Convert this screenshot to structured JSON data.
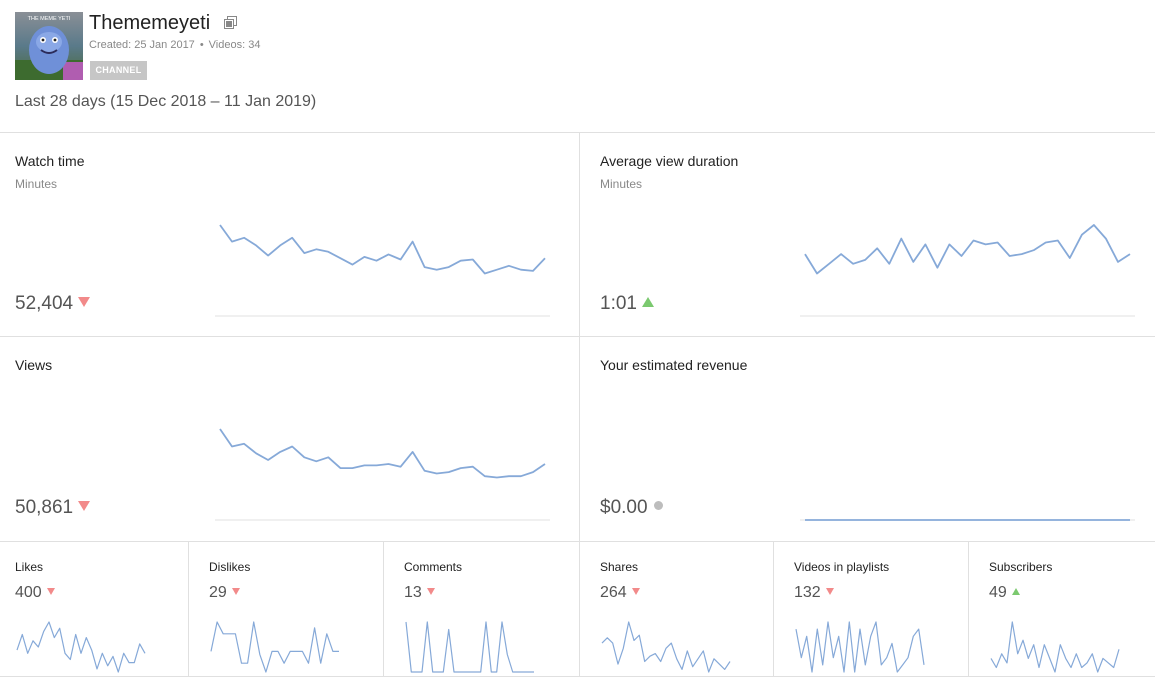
{
  "channel": {
    "title": "Thememeyeti",
    "created": "Created: 25 Jan 2017",
    "videos": "Videos: 34",
    "separator": "•",
    "badge": "CHANNEL",
    "avatar_caption": "THE MEME YETI",
    "link_icon": "external-link-icon"
  },
  "date_range": "Last 28 days (15 Dec 2018 – 11 Jan 2019)",
  "colors": {
    "line": "#86a9d8",
    "down": "#f28a8a",
    "up": "#7bc96f",
    "neutral": "#bdbdbd",
    "divider": "#e0e0e0"
  },
  "main_metrics": [
    {
      "title": "Watch time",
      "unit": "Minutes",
      "value": "52,404",
      "trend": "down",
      "series": [
        2050,
        1920,
        1950,
        1890,
        1810,
        1890,
        1950,
        1830,
        1860,
        1840,
        1790,
        1740,
        1800,
        1770,
        1820,
        1780,
        1920,
        1720,
        1700,
        1720,
        1770,
        1780,
        1670,
        1700,
        1730,
        1700,
        1690,
        1790
      ]
    },
    {
      "title": "Average view duration",
      "unit": "Minutes",
      "value": "1:01",
      "trend": "up",
      "series": [
        61,
        60,
        60.5,
        61,
        60.5,
        60.7,
        61.3,
        60.5,
        61.8,
        60.6,
        61.5,
        60.3,
        61.5,
        60.9,
        61.7,
        61.5,
        61.6,
        60.9,
        61,
        61.2,
        61.6,
        61.7,
        60.8,
        62,
        62.5,
        61.8,
        60.6,
        61
      ]
    },
    {
      "title": "Views",
      "unit": "",
      "value": "50,861",
      "trend": "down",
      "series": [
        2050,
        1920,
        1940,
        1870,
        1820,
        1880,
        1920,
        1840,
        1810,
        1840,
        1760,
        1760,
        1780,
        1780,
        1790,
        1770,
        1880,
        1740,
        1720,
        1730,
        1760,
        1770,
        1700,
        1690,
        1700,
        1700,
        1730,
        1790
      ]
    },
    {
      "title": "Your estimated revenue",
      "unit": "",
      "value": "$0.00",
      "trend": "neutral",
      "series": [
        0,
        0,
        0,
        0,
        0,
        0,
        0,
        0,
        0,
        0,
        0,
        0,
        0,
        0,
        0,
        0,
        0,
        0,
        0,
        0,
        0,
        0,
        0,
        0,
        0,
        0,
        0,
        0
      ]
    }
  ],
  "small_metrics": [
    {
      "title": "Likes",
      "value": "400",
      "trend": "down",
      "series": [
        13,
        18,
        12,
        16,
        14,
        19,
        22,
        17,
        20,
        12,
        10,
        18,
        12,
        17,
        13,
        7,
        12,
        8,
        11,
        6,
        12,
        9,
        9,
        15,
        12
      ]
    },
    {
      "title": "Dislikes",
      "value": "29",
      "trend": "down",
      "series": [
        1,
        2,
        1.6,
        1.6,
        1.6,
        0.6,
        0.6,
        2,
        0.9,
        0.3,
        1,
        1,
        0.6,
        1,
        1,
        1,
        0.6,
        1.8,
        0.6,
        1.6,
        1,
        1
      ]
    },
    {
      "title": "Comments",
      "value": "13",
      "trend": "down",
      "series": [
        2,
        0,
        0,
        0,
        2,
        0,
        0,
        0,
        1.7,
        0,
        0,
        0,
        0,
        0,
        0,
        2,
        0,
        0,
        2,
        0.7,
        0,
        0,
        0,
        0,
        0
      ]
    },
    {
      "title": "Shares",
      "value": "264",
      "trend": "down",
      "series": [
        14,
        16,
        14,
        6,
        12,
        22,
        15,
        17,
        7,
        9,
        10,
        7,
        12,
        14,
        8,
        4,
        11,
        5,
        8,
        11,
        3,
        8,
        6,
        4,
        7
      ]
    },
    {
      "title": "Videos in playlists",
      "value": "132",
      "trend": "down",
      "series": [
        7,
        3,
        6,
        1,
        7,
        2,
        8,
        3,
        6,
        1,
        8,
        1,
        7,
        2,
        6,
        8,
        2,
        3,
        5,
        1,
        2,
        3,
        6,
        7,
        2
      ]
    },
    {
      "title": "Subscribers",
      "value": "49",
      "trend": "up",
      "series": [
        3,
        1,
        4,
        2,
        11,
        4,
        7,
        3,
        6,
        1,
        6,
        3,
        0,
        6,
        3,
        1,
        4,
        1,
        2,
        4,
        0,
        3,
        2,
        1,
        5
      ]
    }
  ]
}
